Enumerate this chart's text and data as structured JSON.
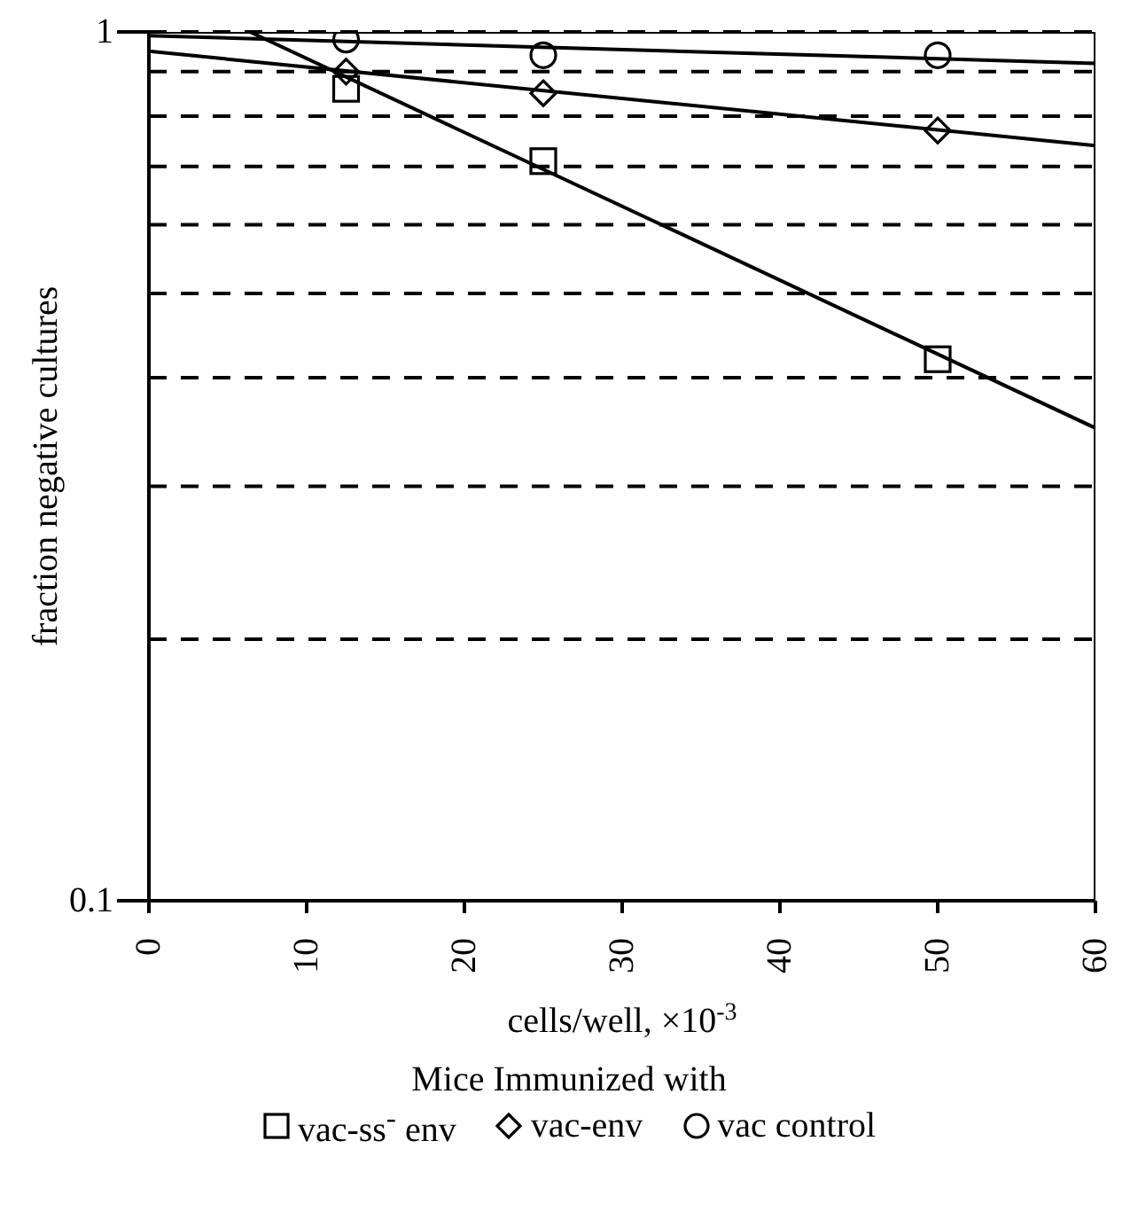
{
  "chart_data": {
    "type": "scatter",
    "xlabel": "cells/well,  ×10$^{-3}$",
    "ylabel": "fraction negative cultures",
    "legend_title": "Mice Immunized with",
    "xlim": [
      0,
      60
    ],
    "xticks": [
      0,
      10,
      20,
      30,
      40,
      50,
      60
    ],
    "ylim": [
      0.1,
      1
    ],
    "yticks": [
      0.1,
      {
        "value": 0.2,
        "label": null
      },
      {
        "value": 0.3,
        "label": null
      },
      {
        "value": 0.4,
        "label": null
      },
      {
        "value": 0.5,
        "label": null
      },
      {
        "value": 0.6,
        "label": null
      },
      {
        "value": 0.7,
        "label": null
      },
      {
        "value": 0.8,
        "label": null
      },
      {
        "value": 0.9,
        "label": null
      },
      1
    ],
    "log": "y",
    "grid": "y",
    "legend": "bottom",
    "series": [
      {
        "name": "vac-ss$^{-}$ env",
        "marker": "square",
        "color": "#000000",
        "x": [
          12.5,
          25,
          50
        ],
        "values": [
          0.86,
          0.71,
          0.42
        ]
      },
      {
        "name": "vac-env",
        "marker": "diamond",
        "color": "#000000",
        "x": [
          12.5,
          25,
          50
        ],
        "values": [
          0.9,
          0.85,
          0.77
        ]
      },
      {
        "name": "vac control",
        "marker": "circle",
        "color": "#000000",
        "x": [
          12.5,
          25,
          50
        ],
        "values": [
          0.98,
          0.94,
          0.94
        ]
      },
      {
        "type": "line",
        "marker": "none",
        "line_style": "solid",
        "color": "#000000",
        "x": [
          6.4,
          60
        ],
        "values": [
          1,
          0.35
        ]
      },
      {
        "type": "line",
        "marker": "none",
        "line_style": "solid",
        "color": "#000000",
        "x": [
          0,
          60
        ],
        "values": [
          0.95,
          0.74
        ]
      },
      {
        "type": "line",
        "marker": "none",
        "line_style": "solid",
        "color": "#000000",
        "x": [
          0,
          60
        ],
        "values": [
          0.99,
          0.92
        ]
      }
    ]
  }
}
